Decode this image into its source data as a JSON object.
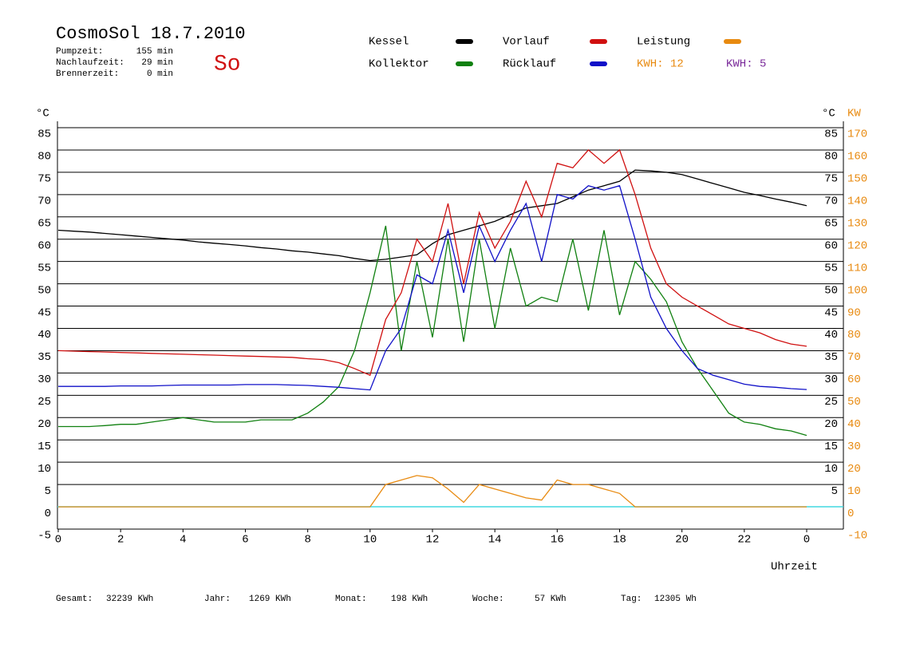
{
  "header": {
    "title": "CosmoSol 18.7.2010",
    "day": "So",
    "info": [
      {
        "label": "Pumpzeit:",
        "value": "155 min"
      },
      {
        "label": "Nachlaufzeit:",
        "value": "29 min"
      },
      {
        "label": "Brennerzeit:",
        "value": "0 min"
      }
    ],
    "kwh": [
      {
        "text": "KWH: 12",
        "color": "#e88a10"
      },
      {
        "text": "KWH: 5",
        "color": "#7a2a9a"
      }
    ]
  },
  "chart_data": {
    "type": "line",
    "y_label": "°C",
    "y2_label_c": "°C",
    "y2_label": "KW",
    "x_label": "Uhrzeit",
    "xlim": [
      0,
      24
    ],
    "xticks": [
      0,
      2,
      4,
      6,
      8,
      10,
      12,
      14,
      16,
      18,
      20,
      22,
      {
        "value": 24,
        "label": "0"
      }
    ],
    "ylim": [
      -5,
      90
    ],
    "yticks": [
      -5,
      0,
      5,
      10,
      15,
      20,
      25,
      30,
      35,
      40,
      45,
      50,
      55,
      60,
      65,
      70,
      75,
      80,
      85
    ],
    "y2lim": [
      -10,
      180
    ],
    "y2ticks": [
      -10,
      0,
      10,
      20,
      30,
      40,
      50,
      60,
      70,
      80,
      90,
      100,
      110,
      120,
      130,
      140,
      150,
      160,
      170
    ],
    "grid": true,
    "x": [
      0,
      0.5,
      1,
      1.5,
      2,
      2.5,
      3,
      3.5,
      4,
      4.5,
      5,
      5.5,
      6,
      6.5,
      7,
      7.5,
      8,
      8.5,
      9,
      9.5,
      10,
      10.5,
      11,
      11.5,
      12,
      12.5,
      13,
      13.5,
      14,
      14.5,
      15,
      15.5,
      16,
      16.5,
      17,
      17.5,
      18,
      18.5,
      19,
      19.5,
      20,
      20.5,
      21,
      21.5,
      22,
      22.5,
      23,
      23.5,
      24
    ],
    "series": [
      {
        "name": "Kessel",
        "color": "#000000",
        "values": [
          62,
          61.8,
          61.6,
          61.3,
          61.0,
          60.7,
          60.4,
          60.1,
          59.8,
          59.4,
          59.1,
          58.8,
          58.5,
          58.1,
          57.8,
          57.4,
          57.1,
          56.7,
          56.3,
          55.7,
          55.2,
          55.5,
          56,
          56.5,
          59,
          61,
          62,
          63,
          64,
          65.5,
          67,
          67.5,
          68,
          69.5,
          71,
          72,
          73,
          75.5,
          75.3,
          75,
          74.5,
          73.5,
          72.5,
          71.5,
          70.5,
          69.8,
          69,
          68.3,
          67.5
        ]
      },
      {
        "name": "Kollektor",
        "color": "#108010",
        "values": [
          18,
          18,
          18,
          18.2,
          18.5,
          18.5,
          19,
          19.5,
          20,
          19.5,
          19,
          19,
          19,
          19.5,
          19.5,
          19.5,
          21,
          23.5,
          27,
          35,
          48,
          63,
          35,
          55,
          38,
          60,
          37,
          60,
          40,
          58,
          45,
          47,
          46,
          60,
          44,
          62,
          43,
          55,
          51,
          46,
          37,
          31,
          26,
          21,
          19,
          18.5,
          17.5,
          17,
          16
        ]
      },
      {
        "name": "Vorlauf",
        "color": "#d01010",
        "values": [
          35,
          34.9,
          34.8,
          34.7,
          34.6,
          34.5,
          34.4,
          34.3,
          34.2,
          34.1,
          34.0,
          33.9,
          33.8,
          33.7,
          33.6,
          33.5,
          33.2,
          33.0,
          32.3,
          31,
          29.5,
          42,
          48,
          60,
          55,
          68,
          50,
          66,
          58,
          64,
          73,
          65,
          77,
          76,
          80,
          77,
          80,
          70,
          58,
          50,
          47,
          45,
          43,
          41,
          40,
          39,
          37.5,
          36.5,
          36
        ]
      },
      {
        "name": "Rücklauf",
        "color": "#1010c8",
        "values": [
          27,
          27,
          27,
          27,
          27.1,
          27.1,
          27.1,
          27.2,
          27.3,
          27.3,
          27.3,
          27.3,
          27.4,
          27.4,
          27.4,
          27.3,
          27.2,
          27,
          26.8,
          26.5,
          26.2,
          35,
          40,
          52,
          50,
          62,
          48,
          63,
          55,
          62,
          68,
          55,
          70,
          69,
          72,
          71,
          72,
          60,
          47,
          40,
          35,
          31,
          29.5,
          28.5,
          27.5,
          27,
          26.8,
          26.5,
          26.3
        ]
      },
      {
        "name": "Leistung",
        "color": "#e88a10",
        "axis": "y2",
        "values": [
          0,
          0,
          0,
          0,
          0,
          0,
          0,
          0,
          0,
          0,
          0,
          0,
          0,
          0,
          0,
          0,
          0,
          0,
          0,
          0,
          0,
          10,
          12,
          14,
          13,
          8,
          2,
          10,
          8,
          6,
          4,
          3,
          12,
          10,
          10,
          8,
          6,
          0,
          0,
          0,
          0,
          0,
          0,
          0,
          0,
          0,
          0,
          0,
          0
        ]
      }
    ]
  },
  "footer": [
    {
      "label": "Gesamt:",
      "value": "32239 KWh"
    },
    {
      "label": "Jahr:",
      "value": "1269 KWh"
    },
    {
      "label": "Monat:",
      "value": "198 KWh"
    },
    {
      "label": "Woche:",
      "value": "57 KWh"
    },
    {
      "label": "Tag:",
      "value": "12305 Wh"
    }
  ]
}
